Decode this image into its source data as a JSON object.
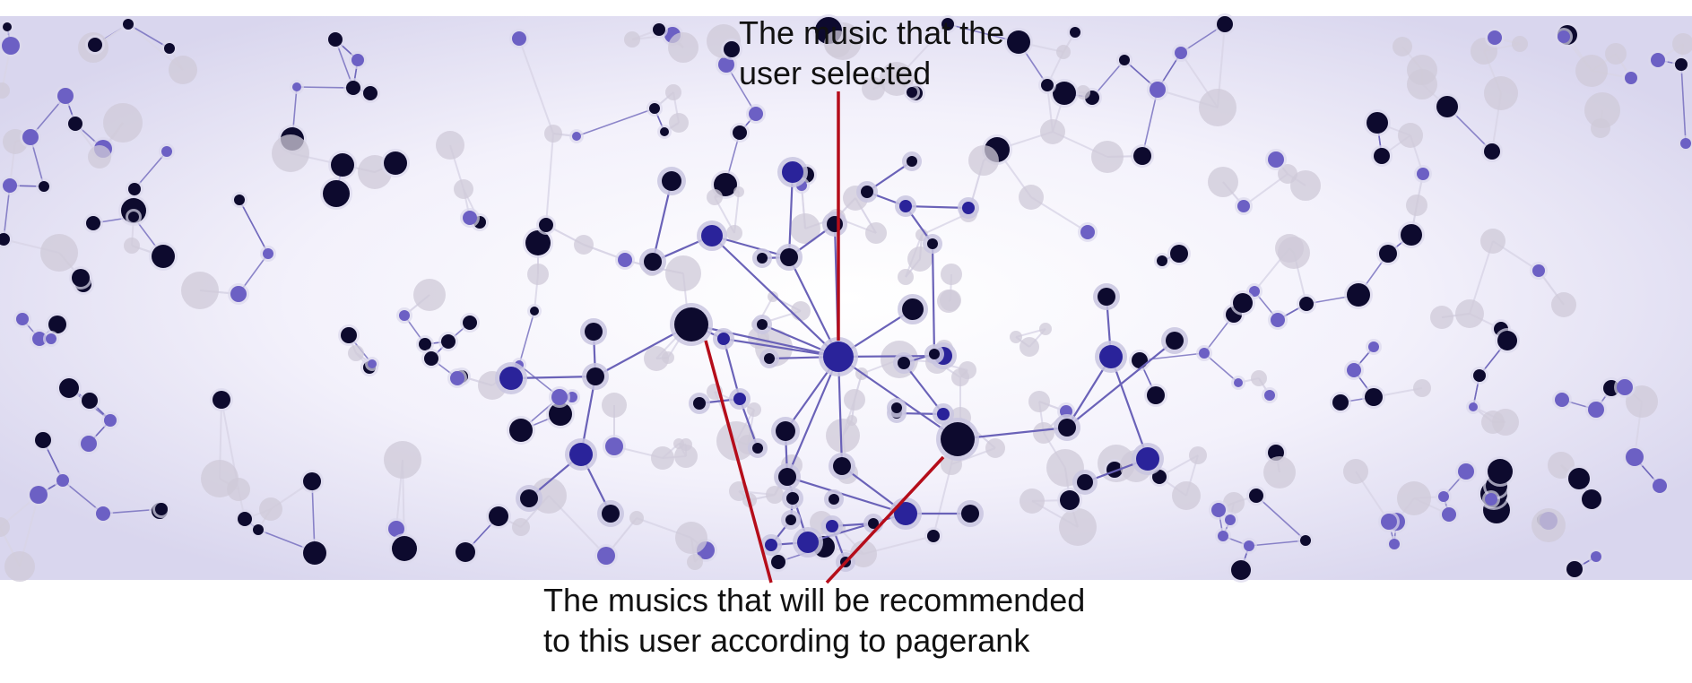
{
  "annotations": {
    "selected": {
      "line1": "The music that the",
      "line2": "user selected"
    },
    "recommended": {
      "line1": "The musics that will be recommended",
      "line2": "to this user according to pagerank"
    }
  },
  "colors": {
    "background_light": "#f7f6fc",
    "background_edge": "#d6d3ec",
    "callout_line": "#b50d1a",
    "node_dark": "#0d0a2e",
    "node_blue": "#2a239a",
    "node_purple": "#6c60c4",
    "node_grey": "#cfc9d8",
    "edge": "#6a62b8"
  },
  "icons": {
    "network": "music-network-graph"
  }
}
